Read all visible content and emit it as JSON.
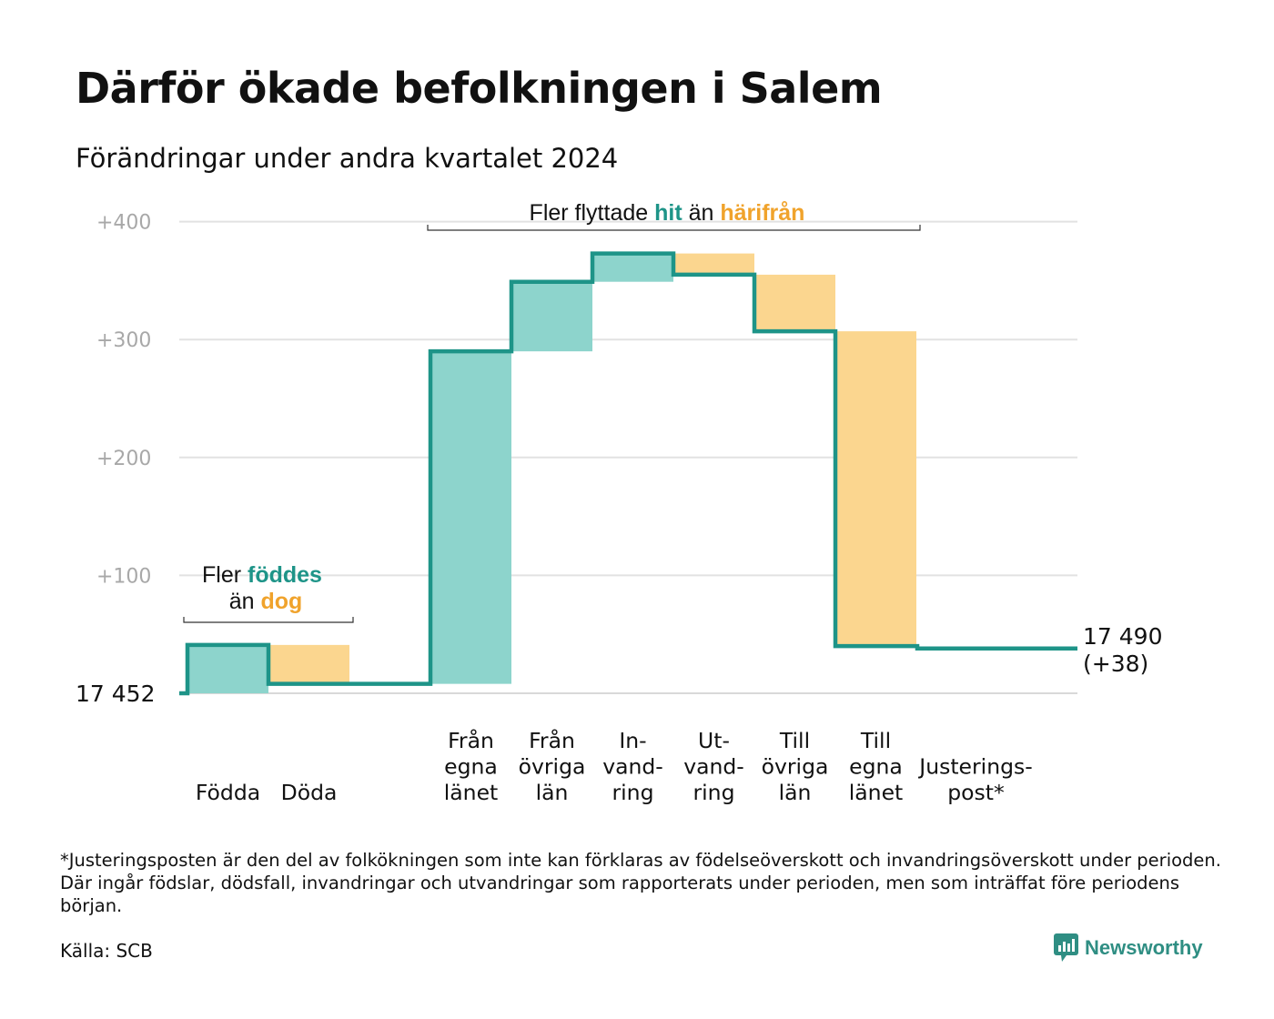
{
  "title": "Därför ökade befolkningen i Salem",
  "subtitle": "Förändringar under andra kvartalet 2024",
  "chart_data": {
    "type": "bar",
    "subtype": "waterfall",
    "base_label": "17  452",
    "end_label_line1": "17 490",
    "end_label_line2": "(+38)",
    "yticks": [
      "+100",
      "+200",
      "+300",
      "+400"
    ],
    "ytick_values": [
      100,
      200,
      300,
      400
    ],
    "ylim": [
      0,
      400
    ],
    "grid": true,
    "colors": {
      "positive": "#8dd4cc",
      "negative": "#fbd68f",
      "line": "#1e9488",
      "hit": "#1e9488",
      "harifran": "#f0a32c"
    },
    "steps": [
      {
        "label": [
          "Födda"
        ],
        "start": 0,
        "end": 41,
        "kind": "positive"
      },
      {
        "label": [
          "Döda"
        ],
        "start": 41,
        "end": 8,
        "kind": "negative"
      },
      {
        "label": [
          "Från",
          "egna",
          "länet"
        ],
        "start": 8,
        "end": 290,
        "kind": "positive"
      },
      {
        "label": [
          "Från",
          "övriga",
          "län"
        ],
        "start": 290,
        "end": 349,
        "kind": "positive"
      },
      {
        "label": [
          "In-",
          "vand-",
          "ring"
        ],
        "start": 349,
        "end": 373,
        "kind": "positive"
      },
      {
        "label": [
          "Ut-",
          "vand-",
          "ring"
        ],
        "start": 373,
        "end": 355,
        "kind": "negative"
      },
      {
        "label": [
          "Till",
          "övriga",
          "län"
        ],
        "start": 355,
        "end": 307,
        "kind": "negative"
      },
      {
        "label": [
          "Till",
          "egna",
          "länet"
        ],
        "start": 307,
        "end": 40,
        "kind": "negative"
      },
      {
        "label": [
          "Justerings-",
          "post*"
        ],
        "start": 40,
        "end": 38,
        "kind": "adjustment"
      }
    ],
    "annotations": [
      {
        "parts": [
          "Fler ",
          "föddes"
        ],
        "line2": [
          "än ",
          "dog"
        ]
      },
      {
        "parts": [
          "Fler flyttade ",
          "hit",
          " än ",
          "härifrån"
        ]
      }
    ]
  },
  "footnote": "*Justeringsposten är den del av folkökningen som inte kan förklaras av födelseöverskott och invandringsöverskott under perioden. Där ingår födslar, dödsfall, invandringar och utvandringar som rapporterats under perioden, men som inträffat före periodens början.",
  "source": "Källa: SCB",
  "brand": "Newsworthy"
}
